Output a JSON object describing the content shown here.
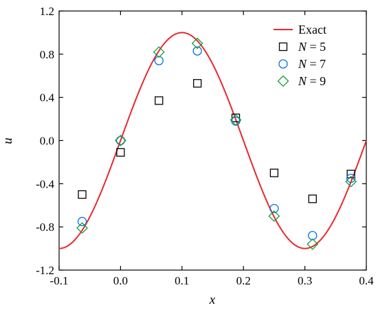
{
  "chart_data": {
    "type": "line",
    "title": "",
    "xlabel": "x",
    "ylabel": "u",
    "xlim": [
      -0.1,
      0.4
    ],
    "ylim": [
      -1.2,
      1.2
    ],
    "xticks": [
      -0.1,
      0.0,
      0.1,
      0.2,
      0.3,
      0.4
    ],
    "xtick_labels": [
      "-0.1",
      "0.0",
      "0.1",
      "0.2",
      "0.3",
      "0.4"
    ],
    "yticks": [
      -1.2,
      -0.8,
      -0.4,
      0.0,
      0.4,
      0.8,
      1.2
    ],
    "ytick_labels": [
      "-1.2",
      "-0.8",
      "-0.4",
      "0.0",
      "0.4",
      "0.8",
      "1.2"
    ],
    "grid": false,
    "legend_position": "top-right",
    "series": [
      {
        "name": "Exact",
        "kind": "line",
        "color": "#e8282b",
        "function": "sin(5*pi*x)",
        "x_range": [
          -0.1,
          0.4
        ]
      },
      {
        "name": "N = 5",
        "name_var": "N",
        "name_rest": " = 5",
        "kind": "marker",
        "marker": "square",
        "color": "#000000",
        "x": [
          -0.0625,
          0.0,
          0.0625,
          0.125,
          0.1875,
          0.25,
          0.3125,
          0.375
        ],
        "y": [
          -0.5,
          -0.11,
          0.37,
          0.53,
          0.21,
          -0.3,
          -0.54,
          -0.31
        ]
      },
      {
        "name": "N = 7",
        "name_var": "N",
        "name_rest": " = 7",
        "kind": "marker",
        "marker": "circle",
        "color": "#0070e8",
        "x": [
          -0.0625,
          0.0,
          0.0625,
          0.125,
          0.1875,
          0.25,
          0.3125,
          0.375
        ],
        "y": [
          -0.75,
          0.0,
          0.74,
          0.83,
          0.18,
          -0.63,
          -0.88,
          -0.35
        ]
      },
      {
        "name": "N = 9",
        "name_var": "N",
        "name_rest": " = 9",
        "kind": "marker",
        "marker": "diamond",
        "color": "#1a9a3a",
        "x": [
          -0.0625,
          0.0,
          0.0625,
          0.125,
          0.1875,
          0.25,
          0.3125,
          0.375
        ],
        "y": [
          -0.81,
          0.0,
          0.82,
          0.9,
          0.19,
          -0.7,
          -0.96,
          -0.38
        ]
      }
    ]
  }
}
